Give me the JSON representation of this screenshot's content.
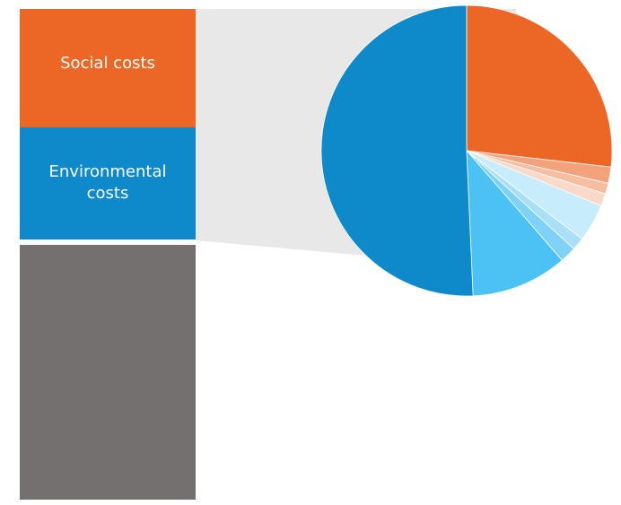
{
  "chart_data": [
    {
      "type": "bar",
      "stacked": true,
      "segments": [
        {
          "label": "Social costs",
          "value": 24.4,
          "color": "#EC6726"
        },
        {
          "label": "Environmental costs",
          "value": 23.1,
          "color": "#0E8ACB"
        },
        {
          "label": "",
          "value": 52.5,
          "color": "#757070"
        }
      ]
    },
    {
      "type": "pie",
      "slices": [
        {
          "value": 26.8,
          "color": "#EC6726"
        },
        {
          "value": 1.8,
          "color": "#F3A27B"
        },
        {
          "value": 1.2,
          "color": "#F6BDA1"
        },
        {
          "value": 1.4,
          "color": "#FAD9C9"
        },
        {
          "value": 4.2,
          "color": "#C7ECFB"
        },
        {
          "value": 1.4,
          "color": "#A9E0F8"
        },
        {
          "value": 1.8,
          "color": "#7ED1F7"
        },
        {
          "value": 10.7,
          "color": "#4CC2F4"
        },
        {
          "value": 50.7,
          "color": "#0E8ACB"
        }
      ]
    }
  ],
  "colors": {
    "connector": "#E8E8E8",
    "label_text": "#FFFFFF"
  }
}
